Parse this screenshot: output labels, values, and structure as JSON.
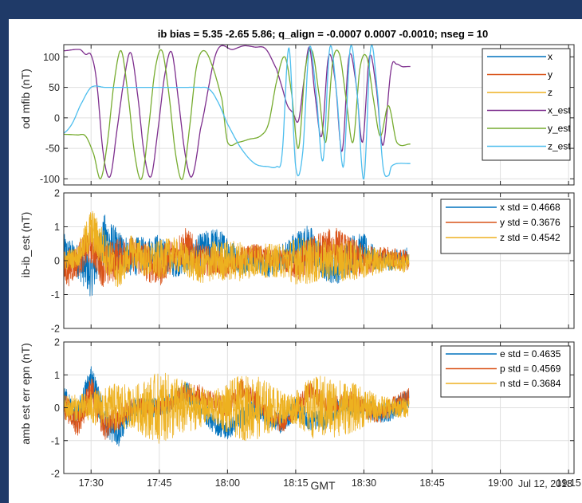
{
  "colors": {
    "background": "#1f3a68",
    "blue": "#0072bd",
    "orange": "#d95319",
    "yellow": "#edb120",
    "purple": "#7e2f8e",
    "green": "#77ac30",
    "cyan": "#4dbeee"
  },
  "chart_data": [
    {
      "type": "line",
      "title": "ib bias =    5.35  -2.65   5.86; q_align = -0.0007  0.0007 -0.0010; nseg =  10",
      "ylabel": "od mfib (nT)",
      "ylim": [
        -110,
        120
      ],
      "yticks": [
        100,
        50,
        0,
        -50,
        -100
      ],
      "xlim": [
        17.4,
        19.27
      ],
      "grid": true,
      "legend_position": "top-right",
      "series": [
        {
          "name": "x",
          "color": "#0072bd",
          "t": [],
          "values": []
        },
        {
          "name": "y",
          "color": "#d95319",
          "t": [],
          "values": []
        },
        {
          "name": "z",
          "color": "#edb120",
          "t": [],
          "values": []
        },
        {
          "name": "x_est",
          "color": "#7e2f8e",
          "t": [
            17.4,
            17.46,
            17.48,
            17.5,
            17.52,
            17.545,
            17.57,
            17.595,
            17.62,
            17.645,
            17.67,
            17.695,
            17.72,
            17.745,
            17.77,
            17.795,
            17.82,
            17.845,
            17.87,
            17.9,
            17.96,
            18.02,
            18.06,
            18.1,
            18.14,
            18.18,
            18.2,
            18.22,
            18.24,
            18.26,
            18.28,
            18.3,
            18.32,
            18.345,
            18.37,
            18.395,
            18.42,
            18.445,
            18.47,
            18.495,
            18.52,
            18.545,
            18.57,
            18.6,
            18.62,
            18.64,
            18.66,
            18.67
          ],
          "values": [
            110,
            112,
            104,
            103,
            60,
            -60,
            -96,
            -20,
            60,
            107,
            40,
            -60,
            -96,
            -20,
            70,
            108,
            30,
            -60,
            -96,
            -20,
            108,
            112,
            118,
            116,
            113,
            80,
            50,
            20,
            8,
            -5,
            60,
            116,
            40,
            -30,
            100,
            60,
            -55,
            100,
            60,
            -40,
            100,
            50,
            -45,
            80,
            88,
            84,
            84,
            84
          ]
        },
        {
          "name": "y_est",
          "color": "#77ac30",
          "t": [
            17.4,
            17.45,
            17.48,
            17.51,
            17.535,
            17.56,
            17.585,
            17.61,
            17.635,
            17.66,
            17.685,
            17.71,
            17.735,
            17.76,
            17.785,
            17.81,
            17.835,
            17.86,
            17.885,
            17.91,
            17.94,
            17.98,
            18.0,
            18.04,
            18.08,
            18.12,
            18.15,
            18.18,
            18.21,
            18.235,
            18.26,
            18.285,
            18.31,
            18.335,
            18.36,
            18.385,
            18.41,
            18.435,
            18.46,
            18.485,
            18.51,
            18.535,
            18.56,
            18.59,
            18.62,
            18.67
          ],
          "values": [
            -27,
            -28,
            -30,
            -60,
            -100,
            -40,
            60,
            110,
            40,
            -60,
            -100,
            -20,
            80,
            110,
            40,
            -60,
            -100,
            -20,
            80,
            110,
            90,
            30,
            -40,
            -40,
            -35,
            -30,
            -10,
            60,
            100,
            40,
            -50,
            80,
            110,
            40,
            -40,
            90,
            105,
            30,
            -40,
            80,
            100,
            30,
            -30,
            20,
            -40,
            -43
          ]
        },
        {
          "name": "z_est",
          "color": "#4dbeee",
          "t": [
            17.4,
            17.43,
            17.46,
            17.5,
            17.55,
            17.6,
            17.7,
            17.8,
            17.85,
            17.9,
            17.93,
            17.96,
            18.0,
            18.05,
            18.1,
            18.15,
            18.18,
            18.2,
            18.225,
            18.25,
            18.275,
            18.3,
            18.325,
            18.35,
            18.375,
            18.4,
            18.425,
            18.45,
            18.475,
            18.5,
            18.525,
            18.55,
            18.57,
            18.59,
            18.6,
            18.62,
            18.67
          ],
          "values": [
            -25,
            -10,
            20,
            50,
            50,
            50,
            50,
            50,
            50,
            50,
            48,
            30,
            -10,
            -50,
            -75,
            -80,
            -80,
            -60,
            115,
            -80,
            -60,
            115,
            40,
            -70,
            115,
            40,
            -80,
            115,
            40,
            -100,
            115,
            40,
            -80,
            -95,
            -80,
            -75,
            -75
          ]
        }
      ]
    },
    {
      "type": "line",
      "ylabel": "ib-ib_est (nT)",
      "ylim": [
        -2,
        2
      ],
      "yticks": [
        2,
        1,
        0,
        -1,
        -2
      ],
      "xlim": [
        17.4,
        19.27
      ],
      "grid": true,
      "legend_position": "top-right",
      "noise_end": 18.665,
      "series": [
        {
          "name": "x std = 0.4668",
          "color": "#0072bd",
          "t": [
            17.4,
            17.45,
            17.5,
            17.55,
            17.6,
            17.65,
            17.7,
            17.75,
            17.8,
            17.85,
            17.9,
            17.95,
            18.0,
            18.05,
            18.1,
            18.15,
            18.2,
            18.25,
            18.3,
            18.35,
            18.4,
            18.45,
            18.5,
            18.55,
            18.6,
            18.665
          ],
          "values": [
            0.2,
            0.0,
            -0.4,
            0.6,
            0.3,
            0.1,
            0.2,
            0.3,
            -0.1,
            0.0,
            0.3,
            0.4,
            0.3,
            -0.1,
            0.0,
            -0.2,
            0.1,
            0.3,
            0.5,
            -0.1,
            -0.3,
            0.2,
            0.3,
            0.0,
            0.0,
            0.1
          ],
          "amp": [
            0.6,
            0.5,
            0.7,
            0.8,
            0.6,
            0.6,
            0.5,
            0.5,
            0.4,
            0.4,
            0.5,
            0.6,
            0.5,
            0.3,
            0.3,
            0.3,
            0.4,
            0.6,
            0.6,
            0.5,
            0.4,
            0.6,
            0.5,
            0.3,
            0.3,
            0.3
          ]
        },
        {
          "name": "y std = 0.3676",
          "color": "#d95319",
          "t": [
            17.4,
            17.45,
            17.5,
            17.55,
            17.6,
            17.65,
            17.7,
            17.75,
            17.8,
            17.85,
            17.9,
            17.95,
            18.0,
            18.05,
            18.1,
            18.15,
            18.2,
            18.25,
            18.3,
            18.35,
            18.4,
            18.45,
            18.5,
            18.55,
            18.6,
            18.665
          ],
          "values": [
            -0.3,
            0.0,
            0.5,
            -0.2,
            0.1,
            0.2,
            0.0,
            -0.2,
            0.2,
            0.4,
            0.0,
            0.0,
            -0.2,
            0.1,
            0.2,
            0.1,
            0.0,
            -0.1,
            0.1,
            0.3,
            0.4,
            0.1,
            0.0,
            0.1,
            0.1,
            0.0
          ],
          "amp": [
            0.6,
            0.5,
            0.6,
            0.7,
            0.6,
            0.5,
            0.6,
            0.6,
            0.5,
            0.6,
            0.5,
            0.4,
            0.3,
            0.3,
            0.3,
            0.3,
            0.3,
            0.5,
            0.6,
            0.6,
            0.6,
            0.6,
            0.5,
            0.3,
            0.3,
            0.3
          ]
        },
        {
          "name": "z std = 0.4542",
          "color": "#edb120",
          "t": [
            17.4,
            17.45,
            17.5,
            17.55,
            17.6,
            17.65,
            17.7,
            17.75,
            17.8,
            17.85,
            17.9,
            17.95,
            18.0,
            18.05,
            18.1,
            18.15,
            18.2,
            18.25,
            18.3,
            18.35,
            18.4,
            18.45,
            18.5,
            18.55,
            18.6,
            18.665
          ],
          "values": [
            0.0,
            0.1,
            0.9,
            0.3,
            -0.4,
            0.3,
            0.0,
            0.0,
            0.2,
            0.0,
            -0.2,
            0.0,
            0.0,
            0.0,
            0.0,
            0.0,
            0.0,
            0.0,
            0.0,
            0.0,
            0.0,
            0.0,
            0.0,
            0.0,
            0.0,
            -0.1
          ],
          "amp": [
            0.3,
            0.3,
            0.7,
            0.6,
            0.5,
            0.5,
            0.5,
            0.6,
            0.5,
            0.5,
            0.5,
            0.6,
            0.6,
            0.6,
            0.5,
            0.5,
            0.5,
            0.7,
            0.7,
            0.6,
            0.6,
            0.6,
            0.5,
            0.4,
            0.3,
            0.3
          ]
        }
      ]
    },
    {
      "type": "line",
      "ylabel": "amb est err epn (nT)",
      "xlabel": "GMT",
      "date_label": "Jul 12, 2018",
      "ylim": [
        -2,
        2
      ],
      "yticks": [
        2,
        1,
        0,
        -1,
        -2
      ],
      "xlim": [
        17.4,
        19.27
      ],
      "xticks": [
        {
          "t": 17.5,
          "label": "17:30"
        },
        {
          "t": 17.75,
          "label": "17:45"
        },
        {
          "t": 18.0,
          "label": "18:00"
        },
        {
          "t": 18.25,
          "label": "18:15"
        },
        {
          "t": 18.5,
          "label": "18:30"
        },
        {
          "t": 18.75,
          "label": "18:45"
        },
        {
          "t": 19.0,
          "label": "19:00"
        },
        {
          "t": 19.25,
          "label": "19:15"
        }
      ],
      "grid": true,
      "legend_position": "top-right",
      "noise_end": 18.665,
      "series": [
        {
          "name": "e std = 0.4635",
          "color": "#0072bd",
          "t": [
            17.4,
            17.45,
            17.5,
            17.55,
            17.6,
            17.65,
            17.7,
            17.75,
            17.8,
            17.85,
            17.9,
            17.95,
            18.0,
            18.05,
            18.1,
            18.15,
            18.2,
            18.25,
            18.3,
            18.35,
            18.4,
            18.45,
            18.5,
            18.55,
            18.6,
            18.665
          ],
          "values": [
            0.3,
            -0.3,
            0.9,
            -0.4,
            -0.8,
            0.0,
            0.0,
            0.0,
            0.2,
            0.5,
            0.0,
            -0.5,
            -0.7,
            -0.3,
            0.0,
            -0.3,
            -0.5,
            0.0,
            -0.4,
            -0.4,
            0.0,
            0.0,
            0.0,
            -0.2,
            -0.1,
            0.3
          ],
          "amp": [
            0.4,
            0.4,
            0.5,
            0.5,
            0.4,
            0.3,
            0.3,
            0.3,
            0.3,
            0.3,
            0.3,
            0.3,
            0.3,
            0.3,
            0.3,
            0.3,
            0.3,
            0.3,
            0.3,
            0.3,
            0.3,
            0.3,
            0.3,
            0.3,
            0.3,
            0.3
          ]
        },
        {
          "name": "p std = 0.4569",
          "color": "#d95319",
          "t": [
            17.4,
            17.45,
            17.5,
            17.55,
            17.6,
            17.65,
            17.7,
            17.75,
            17.8,
            17.85,
            17.9,
            17.95,
            18.0,
            18.05,
            18.1,
            18.15,
            18.2,
            18.25,
            18.3,
            18.35,
            18.4,
            18.45,
            18.5,
            18.55,
            18.6,
            18.665
          ],
          "values": [
            0.1,
            -0.5,
            0.5,
            -0.6,
            -0.3,
            0.0,
            0.0,
            0.0,
            0.2,
            0.5,
            0.4,
            0.2,
            0.0,
            0.6,
            0.3,
            -0.2,
            -0.5,
            0.0,
            0.5,
            0.2,
            0.1,
            0.2,
            0.0,
            -0.2,
            0.0,
            0.3
          ],
          "amp": [
            0.4,
            0.4,
            0.5,
            0.4,
            0.4,
            0.3,
            0.3,
            0.3,
            0.3,
            0.3,
            0.3,
            0.3,
            0.3,
            0.3,
            0.3,
            0.3,
            0.3,
            0.3,
            0.3,
            0.3,
            0.3,
            0.3,
            0.3,
            0.3,
            0.3,
            0.3
          ]
        },
        {
          "name": "n std = 0.3684",
          "color": "#edb120",
          "t": [
            17.4,
            17.45,
            17.5,
            17.55,
            17.6,
            17.65,
            17.7,
            17.75,
            17.8,
            17.85,
            17.9,
            17.95,
            18.0,
            18.05,
            18.1,
            18.15,
            18.2,
            18.25,
            18.3,
            18.35,
            18.4,
            18.45,
            18.5,
            18.55,
            18.6,
            18.665
          ],
          "values": [
            0.0,
            0.0,
            0.0,
            0.0,
            0.0,
            0.0,
            0.0,
            0.0,
            0.0,
            0.0,
            0.0,
            0.0,
            0.0,
            0.0,
            0.0,
            0.0,
            0.0,
            0.0,
            0.0,
            0.0,
            0.0,
            0.0,
            0.0,
            0.0,
            0.0,
            0.0
          ],
          "amp": [
            0.4,
            0.4,
            0.5,
            0.6,
            0.8,
            0.6,
            0.9,
            1.1,
            1.0,
            0.8,
            0.6,
            0.5,
            0.8,
            1.0,
            1.0,
            0.8,
            0.5,
            0.5,
            0.9,
            1.0,
            0.9,
            0.8,
            0.6,
            0.4,
            0.3,
            0.3
          ]
        }
      ]
    }
  ]
}
